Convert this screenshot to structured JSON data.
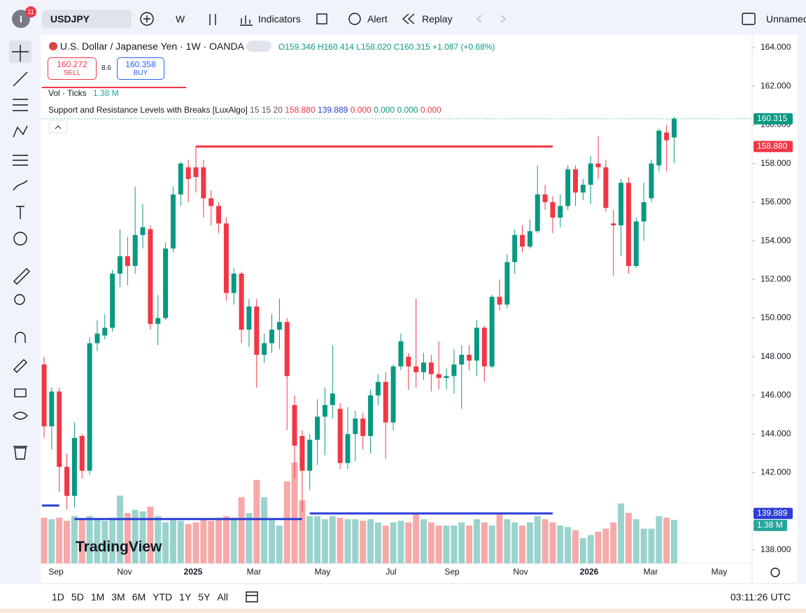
{
  "toolbar": {
    "badge": "11",
    "avatar": "I",
    "symbol": "USDJPY",
    "interval": "W",
    "indicators": "Indicators",
    "alert": "Alert",
    "replay": "Replay",
    "layout": "Unnamed"
  },
  "legend": {
    "title": "U.S. Dollar / Japanese Yen · 1W · OANDA",
    "open": "O159.346",
    "high": "H160.414",
    "low": "L158.020",
    "close": "C160.315",
    "change": "+1.087 (+0.68%)",
    "sell_price": "160.272",
    "sell": "SELL",
    "spread": "8.6",
    "buy_price": "160.358",
    "buy": "BUY",
    "vol": "Vol · Ticks",
    "vol_value": "1.38 M",
    "indicator": "Support and Resistance Levels with Breaks [LuxAlgo]",
    "indicator_params": "15 15 20",
    "indicator_values": [
      "158.880",
      "139.889",
      "0.000",
      "0.000",
      "0.000",
      "0.000"
    ]
  },
  "chart_data": {
    "type": "candlestick",
    "open": [
      147.6,
      144.4,
      146.2,
      142.3,
      140.8,
      143.9,
      142.1,
      148.7,
      149.1,
      149.5,
      152.3,
      153.2,
      152.7,
      154.3,
      154.6,
      149.7,
      150.0,
      153.6,
      156.4,
      157.8,
      157.8,
      157.8,
      156.2,
      155.8,
      154.9,
      151.3,
      152.3,
      149.4,
      150.6,
      148.1,
      148.7,
      149.4,
      149.8,
      145.5,
      143.9,
      142.1,
      143.7,
      144.9,
      145.5,
      145.3,
      142.5,
      144.0,
      144.8,
      143.9,
      146.0,
      146.7,
      144.6,
      147.5,
      148.0,
      147.5,
      147.2,
      147.7,
      147.1,
      146.9,
      147.0,
      147.6,
      148.1,
      147.8,
      149.5,
      147.5,
      151.1,
      150.7,
      152.9,
      154.3,
      153.7,
      154.5,
      156.4,
      156.0,
      155.2,
      155.8,
      157.7,
      156.5,
      156.9,
      158.0,
      157.8,
      154.9,
      154.8,
      157.0,
      152.7,
      155.0,
      156.2,
      157.9,
      159.6,
      159.346
    ],
    "high": [
      148.0,
      146.4,
      146.4,
      143.0,
      144.6,
      144.0,
      149.0,
      149.9,
      150.2,
      152.5,
      154.6,
      154.2,
      156.8,
      155.9,
      154.8,
      151.2,
      153.9,
      156.8,
      158.1,
      158.2,
      158.88,
      158.2,
      156.6,
      156.0,
      155.2,
      152.6,
      152.4,
      151.0,
      151.0,
      149.2,
      150.2,
      151.0,
      150.0,
      146.0,
      144.2,
      144.0,
      145.8,
      146.4,
      148.6,
      145.6,
      145.4,
      145.2,
      145.1,
      146.3,
      147.1,
      147.2,
      147.6,
      149.2,
      148.2,
      151.0,
      148.2,
      148.1,
      148.8,
      147.4,
      148.4,
      148.6,
      148.6,
      149.9,
      149.6,
      151.2,
      152.0,
      153.3,
      154.6,
      154.8,
      155.1,
      157.9,
      156.9,
      156.3,
      156.4,
      157.9,
      157.9,
      157.2,
      158.4,
      159.4,
      158.2,
      155.6,
      157.2,
      157.3,
      155.2,
      157.0,
      158.2,
      159.8,
      160.0,
      160.414
    ],
    "low": [
      143.8,
      143.2,
      141.0,
      140.1,
      140.2,
      141.7,
      141.9,
      148.3,
      148.9,
      149.3,
      151.6,
      151.7,
      152.3,
      153.6,
      149.4,
      148.6,
      149.9,
      153.4,
      155.8,
      156.0,
      156.5,
      155.2,
      154.8,
      154.4,
      150.9,
      150.7,
      148.7,
      148.5,
      146.4,
      147.7,
      148.2,
      148.4,
      144.2,
      141.7,
      140.0,
      141.1,
      142.4,
      142.9,
      144.8,
      142.2,
      142.2,
      142.6,
      143.2,
      143.0,
      145.5,
      142.7,
      144.2,
      147.3,
      146.3,
      146.4,
      146.8,
      146.2,
      146.3,
      146.3,
      146.1,
      145.3,
      147.3,
      147.0,
      146.7,
      147.4,
      150.4,
      150.5,
      152.3,
      153.4,
      153.6,
      154.4,
      155.6,
      154.4,
      154.7,
      155.6,
      155.8,
      156.1,
      155.9,
      157.2,
      155.5,
      152.2,
      153.2,
      152.3,
      152.6,
      154.0,
      156.0,
      157.6,
      157.6,
      158.02
    ],
    "close": [
      144.4,
      146.2,
      142.3,
      140.8,
      143.8,
      142.1,
      148.7,
      149.2,
      149.5,
      152.3,
      153.2,
      152.7,
      154.3,
      154.7,
      149.7,
      150.0,
      153.6,
      156.4,
      158.0,
      157.2,
      157.3,
      156.2,
      155.8,
      154.9,
      151.3,
      152.3,
      149.4,
      150.6,
      148.1,
      148.7,
      149.4,
      149.8,
      147.0,
      143.4,
      142.1,
      143.7,
      144.9,
      145.5,
      146.1,
      142.5,
      144.0,
      144.8,
      143.9,
      146.0,
      146.7,
      144.6,
      147.5,
      148.8,
      147.5,
      147.2,
      147.7,
      147.1,
      146.9,
      147.0,
      147.6,
      148.1,
      147.8,
      149.5,
      147.5,
      151.1,
      150.7,
      152.9,
      154.3,
      153.7,
      154.5,
      156.4,
      156.0,
      155.2,
      155.8,
      157.7,
      156.5,
      156.9,
      158.0,
      157.8,
      155.7,
      154.8,
      157.0,
      152.7,
      155.0,
      156.0,
      158.0,
      159.7,
      159.2,
      160.315
    ],
    "volume": [
      1.45,
      1.4,
      1.45,
      1.35,
      1.5,
      1.4,
      1.5,
      1.4,
      1.35,
      1.45,
      2.15,
      1.6,
      1.7,
      1.65,
      1.8,
      1.5,
      1.3,
      1.4,
      1.35,
      1.25,
      1.3,
      1.4,
      1.35,
      1.45,
      1.5,
      1.45,
      2.1,
      1.6,
      2.65,
      2.1,
      1.4,
      1.2,
      2.6,
      3.2,
      2.0,
      1.5,
      1.5,
      1.4,
      1.5,
      1.45,
      1.4,
      1.4,
      1.35,
      1.4,
      1.3,
      1.2,
      1.3,
      1.35,
      1.3,
      1.55,
      1.4,
      1.3,
      1.2,
      1.2,
      1.2,
      1.3,
      1.2,
      1.4,
      1.3,
      1.2,
      1.55,
      1.4,
      1.3,
      1.2,
      1.3,
      1.5,
      1.4,
      1.3,
      1.2,
      1.15,
      1.05,
      0.8,
      0.9,
      1.0,
      1.1,
      1.3,
      1.9,
      1.6,
      1.4,
      1.1,
      1.1,
      1.5,
      1.45,
      1.38
    ],
    "levels": [
      {
        "price": 158.88,
        "from": 20,
        "to": 67,
        "color": "#f23645"
      },
      {
        "price": 140.3,
        "from": -1,
        "to": 2,
        "color": "#2a3fd8"
      },
      {
        "price": 139.6,
        "from": 4,
        "to": 34,
        "color": "#2a3fd8"
      },
      {
        "price": 139.889,
        "from": 35,
        "to": 67,
        "color": "#2a3fd8"
      }
    ],
    "ylim": [
      137.31,
      164.65
    ],
    "yticks": [
      {
        "value": 164,
        "label": "164.000"
      },
      {
        "value": 162,
        "label": "162.000"
      },
      {
        "value": 160,
        "label": "160.000"
      },
      {
        "value": 158,
        "label": "158.000"
      },
      {
        "value": 156,
        "label": "156.000"
      },
      {
        "value": 154,
        "label": "154.000"
      },
      {
        "value": 152,
        "label": "152.000"
      },
      {
        "value": 150,
        "label": "150.000"
      },
      {
        "value": 148,
        "label": "148.000"
      },
      {
        "value": 146,
        "label": "146.000"
      },
      {
        "value": 144,
        "label": "144.000"
      },
      {
        "value": 142,
        "label": "142.000"
      },
      {
        "value": 140,
        "label": "140.000"
      },
      {
        "value": 138,
        "label": "138.000"
      }
    ],
    "price_labels": [
      {
        "value": 160.315,
        "label": "160.315",
        "color": "#089981"
      },
      {
        "value": 158.88,
        "label": "158.880",
        "color": "#f23645"
      },
      {
        "value": 139.889,
        "label": "139.889",
        "color": "#2a3fd8"
      }
    ],
    "volume_label": "1.38 M",
    "xlabels": [
      "Sep",
      "Nov",
      "2025",
      "Mar",
      "May",
      "Jul",
      "Sep",
      "Nov",
      "2026",
      "Mar",
      "May"
    ],
    "up_color": "#089981",
    "down_color": "#f23645"
  },
  "footer": {
    "ranges": [
      "1D",
      "5D",
      "1M",
      "3M",
      "6M",
      "YTD",
      "1Y",
      "5Y",
      "All"
    ],
    "clock": "03:11:26 UTC"
  },
  "watermark": "TradingView"
}
